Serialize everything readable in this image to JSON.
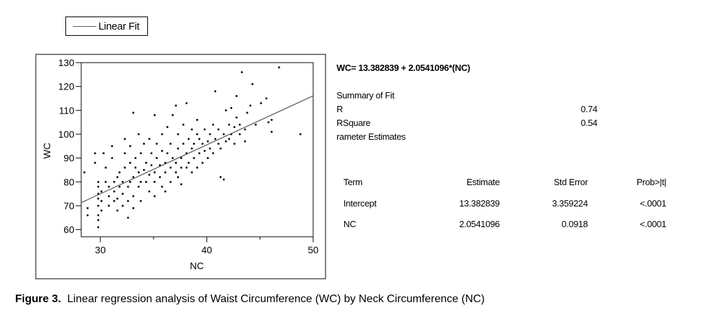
{
  "legend": {
    "label": "Linear Fit"
  },
  "equation": "WC= 13.382839 + 2.0541096*(NC)",
  "summary": {
    "heading": "Summary of Fit",
    "rows": [
      {
        "label": "R",
        "value": "0.74"
      },
      {
        "label": "RSquare",
        "value": "0.54"
      }
    ],
    "param_heading": "rameter Estimates"
  },
  "param_table": {
    "headers": [
      "Term",
      "Estimate",
      "Std Error",
      "Prob>|t|"
    ],
    "rows": [
      [
        "Intercept",
        "13.382839",
        "3.359224",
        "<.0001"
      ],
      [
        "NC",
        "2.0541096",
        "0.0918",
        "<.0001"
      ]
    ]
  },
  "caption": {
    "label": "Figure 3.",
    "text": "Linear regression analysis of Waist Circumference (WC) by Neck Circumference (NC)"
  },
  "chart_data": {
    "type": "scatter",
    "xlabel": "NC",
    "ylabel": "WC",
    "xlim": [
      28.2,
      50
    ],
    "ylim": [
      57,
      130
    ],
    "xticks": [
      30,
      40,
      50
    ],
    "yticks": [
      60,
      70,
      80,
      90,
      100,
      110,
      120,
      130
    ],
    "grid": false,
    "fit_line": {
      "intercept": 13.382839,
      "slope": 2.0541096,
      "name": "Linear Fit"
    },
    "points": [
      [
        28.5,
        84
      ],
      [
        28.8,
        66
      ],
      [
        28.8,
        69
      ],
      [
        29.5,
        92
      ],
      [
        29.5,
        88
      ],
      [
        29.8,
        61
      ],
      [
        29.8,
        64
      ],
      [
        29.8,
        66
      ],
      [
        29.8,
        70
      ],
      [
        29.8,
        73
      ],
      [
        29.8,
        75
      ],
      [
        29.8,
        78
      ],
      [
        29.8,
        80
      ],
      [
        30.1,
        68
      ],
      [
        30.1,
        72
      ],
      [
        30.1,
        76
      ],
      [
        30.3,
        92
      ],
      [
        30.5,
        80
      ],
      [
        30.5,
        86
      ],
      [
        30.8,
        70
      ],
      [
        30.8,
        74
      ],
      [
        30.8,
        78
      ],
      [
        31.1,
        90
      ],
      [
        31.1,
        95
      ],
      [
        31.3,
        72
      ],
      [
        31.3,
        76
      ],
      [
        31.3,
        80
      ],
      [
        31.6,
        68
      ],
      [
        31.6,
        73
      ],
      [
        31.6,
        82
      ],
      [
        31.8,
        78
      ],
      [
        31.8,
        84
      ],
      [
        32.1,
        70
      ],
      [
        32.1,
        75
      ],
      [
        32.1,
        80
      ],
      [
        32.3,
        86
      ],
      [
        32.3,
        92
      ],
      [
        32.3,
        98
      ],
      [
        32.6,
        65
      ],
      [
        32.6,
        72
      ],
      [
        32.6,
        78
      ],
      [
        32.8,
        80
      ],
      [
        32.8,
        88
      ],
      [
        32.8,
        95
      ],
      [
        33.1,
        69
      ],
      [
        33.1,
        74
      ],
      [
        33.1,
        82
      ],
      [
        33.1,
        109
      ],
      [
        33.3,
        86
      ],
      [
        33.3,
        90
      ],
      [
        33.6,
        78
      ],
      [
        33.6,
        84
      ],
      [
        33.6,
        100
      ],
      [
        33.8,
        72
      ],
      [
        33.8,
        80
      ],
      [
        33.8,
        92
      ],
      [
        34.1,
        85
      ],
      [
        34.1,
        96
      ],
      [
        34.3,
        80
      ],
      [
        34.3,
        88
      ],
      [
        34.6,
        76
      ],
      [
        34.6,
        83
      ],
      [
        34.6,
        98
      ],
      [
        34.8,
        87
      ],
      [
        34.8,
        92
      ],
      [
        35.1,
        74
      ],
      [
        35.1,
        80
      ],
      [
        35.1,
        84
      ],
      [
        35.1,
        108
      ],
      [
        35.3,
        90
      ],
      [
        35.3,
        96
      ],
      [
        35.6,
        82
      ],
      [
        35.6,
        87
      ],
      [
        35.8,
        78
      ],
      [
        35.8,
        93
      ],
      [
        35.8,
        100
      ],
      [
        36.1,
        76
      ],
      [
        36.1,
        84
      ],
      [
        36.1,
        88
      ],
      [
        36.3,
        92
      ],
      [
        36.3,
        103
      ],
      [
        36.6,
        80
      ],
      [
        36.6,
        86
      ],
      [
        36.6,
        96
      ],
      [
        36.8,
        90
      ],
      [
        36.8,
        108
      ],
      [
        37.1,
        84
      ],
      [
        37.1,
        88
      ],
      [
        37.1,
        112
      ],
      [
        37.3,
        82
      ],
      [
        37.3,
        94
      ],
      [
        37.3,
        100
      ],
      [
        37.6,
        79
      ],
      [
        37.6,
        86
      ],
      [
        37.6,
        90
      ],
      [
        37.8,
        96
      ],
      [
        37.8,
        104
      ],
      [
        38.1,
        86
      ],
      [
        38.1,
        92
      ],
      [
        38.1,
        113
      ],
      [
        38.3,
        88
      ],
      [
        38.3,
        98
      ],
      [
        38.6,
        84
      ],
      [
        38.6,
        94
      ],
      [
        38.6,
        102
      ],
      [
        38.8,
        90
      ],
      [
        38.8,
        96
      ],
      [
        39.1,
        86
      ],
      [
        39.1,
        100
      ],
      [
        39.1,
        106
      ],
      [
        39.3,
        92
      ],
      [
        39.3,
        98
      ],
      [
        39.6,
        88
      ],
      [
        39.6,
        96
      ],
      [
        39.8,
        93
      ],
      [
        39.8,
        102
      ],
      [
        40.1,
        90
      ],
      [
        40.1,
        97
      ],
      [
        40.3,
        94
      ],
      [
        40.3,
        100
      ],
      [
        40.6,
        92
      ],
      [
        40.6,
        104
      ],
      [
        40.8,
        118
      ],
      [
        40.8,
        98
      ],
      [
        41.1,
        96
      ],
      [
        41.1,
        102
      ],
      [
        41.3,
        94
      ],
      [
        41.3,
        82
      ],
      [
        41.6,
        100
      ],
      [
        41.6,
        81
      ],
      [
        41.8,
        97
      ],
      [
        41.8,
        110
      ],
      [
        42.1,
        98
      ],
      [
        42.1,
        104
      ],
      [
        42.3,
        111
      ],
      [
        42.3,
        100
      ],
      [
        42.6,
        96
      ],
      [
        42.6,
        103
      ],
      [
        42.8,
        116
      ],
      [
        42.8,
        107
      ],
      [
        43.1,
        100
      ],
      [
        43.1,
        104
      ],
      [
        43.3,
        126
      ],
      [
        43.6,
        97
      ],
      [
        43.6,
        102
      ],
      [
        43.8,
        109
      ],
      [
        44.1,
        112
      ],
      [
        44.3,
        121
      ],
      [
        44.6,
        104
      ],
      [
        45.1,
        113
      ],
      [
        45.6,
        115
      ],
      [
        45.8,
        105
      ],
      [
        46.1,
        101
      ],
      [
        46.1,
        106
      ],
      [
        46.8,
        128
      ],
      [
        48.8,
        100
      ]
    ]
  }
}
